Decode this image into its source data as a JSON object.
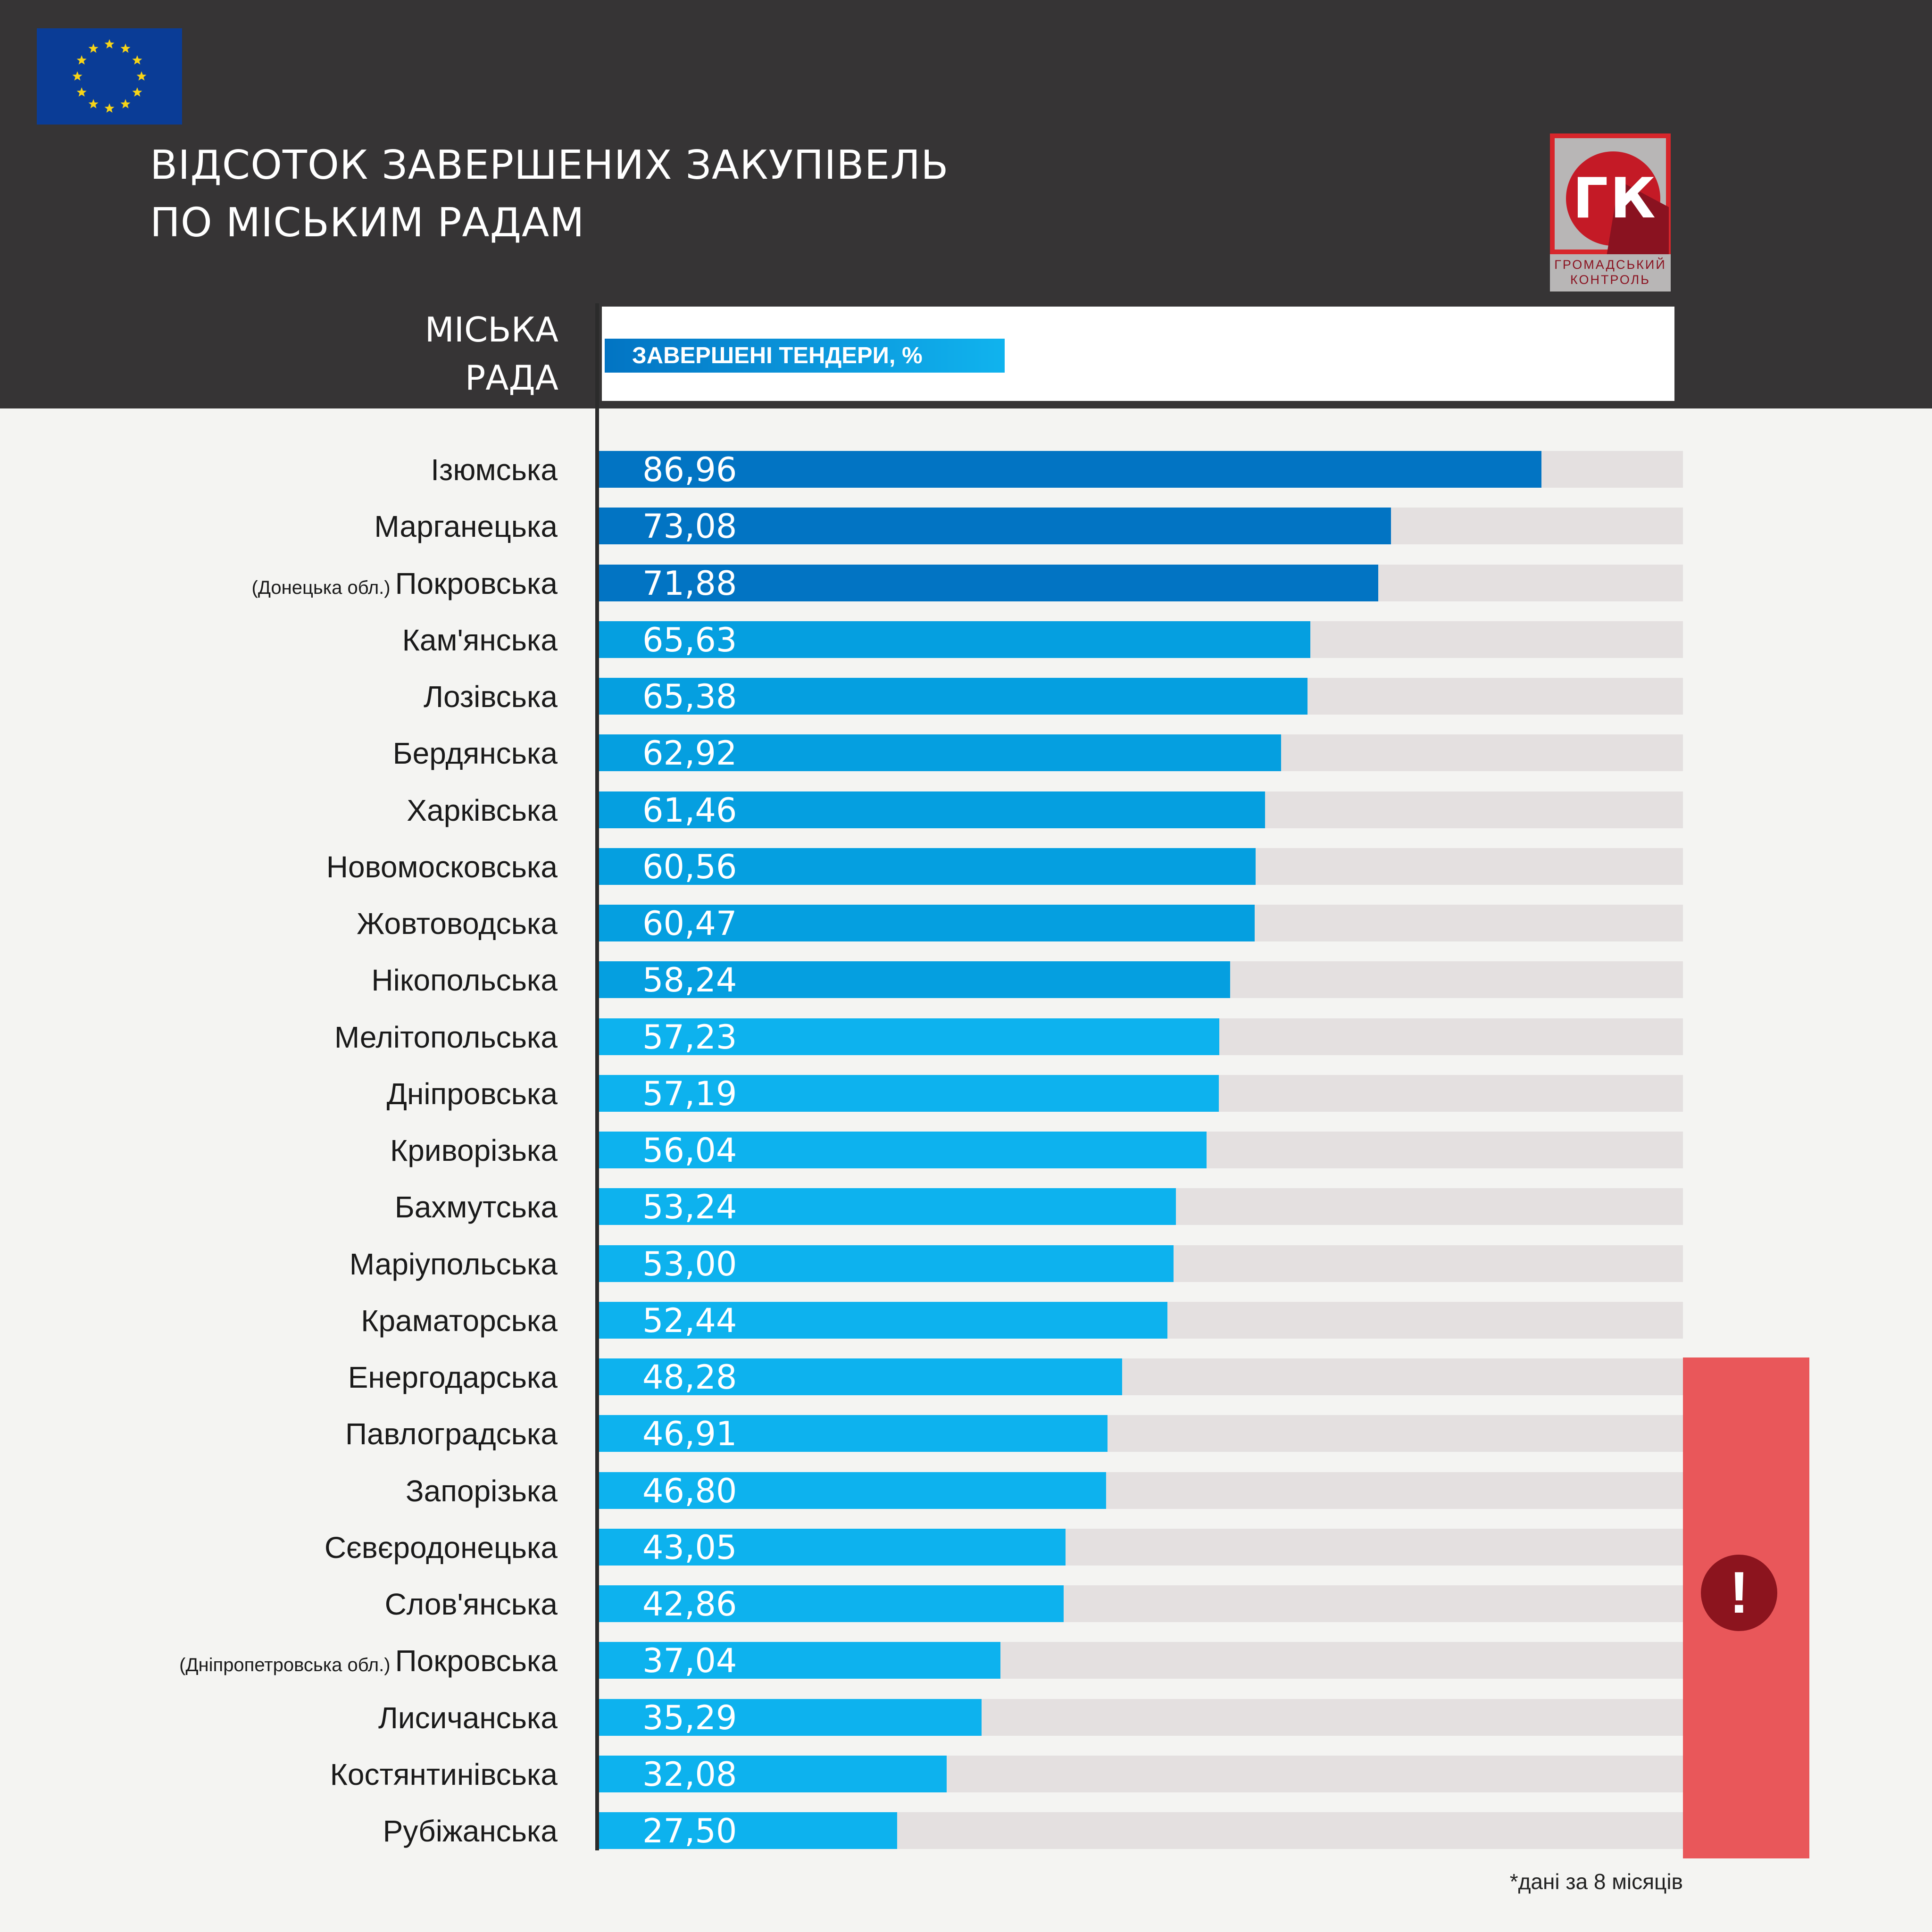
{
  "header": {
    "title_line1": "ВІДСОТОК ЗАВЕРШЕНИХ ЗАКУПІВЕЛЬ",
    "title_line2": "ПО МІСЬКИМ РАДАМ",
    "column_label_line1": "МІСЬКА",
    "column_label_line2": "РАДА",
    "logo_text": "ГК",
    "logo_caption_line1": "ГРОМАДСЬКИЙ",
    "logo_caption_line2": "КОНТРОЛЬ"
  },
  "legend": {
    "label": "ЗАВЕРШЕНІ ТЕНДЕРИ, %"
  },
  "footnote": "*дані за 8 місяців",
  "warning": {
    "symbol": "!"
  },
  "colors": {
    "header_bg": "#363435",
    "bar_dark": "#0274c3",
    "bar_mid": "#059fe0",
    "bar_light": "#0db2ee",
    "track": "#e4e0e0",
    "warning": "#e9575a",
    "eu_blue": "#0a3c96",
    "eu_star": "#f7d417",
    "logo_red": "#d7262b"
  },
  "chart_data": {
    "type": "bar",
    "orientation": "horizontal",
    "xlim": [
      0,
      100
    ],
    "series": [
      {
        "name": "ЗАВЕРШЕНІ ТЕНДЕРИ, %"
      }
    ],
    "rows": [
      {
        "label": "Ізюмська",
        "note": "",
        "value": 86.96,
        "value_text": "86,96",
        "tone": "dark"
      },
      {
        "label": "Марганецька",
        "note": "",
        "value": 73.08,
        "value_text": "73,08",
        "tone": "dark"
      },
      {
        "label": "Покровська",
        "note": "(Донецька обл.)",
        "value": 71.88,
        "value_text": "71,88",
        "tone": "dark"
      },
      {
        "label": "Кам'янська",
        "note": "",
        "value": 65.63,
        "value_text": "65,63",
        "tone": "mid"
      },
      {
        "label": "Лозівська",
        "note": "",
        "value": 65.38,
        "value_text": "65,38",
        "tone": "mid"
      },
      {
        "label": "Бердянська",
        "note": "",
        "value": 62.92,
        "value_text": "62,92",
        "tone": "mid"
      },
      {
        "label": "Харківська",
        "note": "",
        "value": 61.46,
        "value_text": "61,46",
        "tone": "mid"
      },
      {
        "label": "Новомосковська",
        "note": "",
        "value": 60.56,
        "value_text": "60,56",
        "tone": "mid"
      },
      {
        "label": "Жовтоводська",
        "note": "",
        "value": 60.47,
        "value_text": "60,47",
        "tone": "mid"
      },
      {
        "label": "Нікопольська",
        "note": "",
        "value": 58.24,
        "value_text": "58,24",
        "tone": "mid"
      },
      {
        "label": "Мелітопольська",
        "note": "",
        "value": 57.23,
        "value_text": "57,23",
        "tone": "light"
      },
      {
        "label": "Дніпровська",
        "note": "",
        "value": 57.19,
        "value_text": "57,19",
        "tone": "light"
      },
      {
        "label": "Криворізька",
        "note": "",
        "value": 56.04,
        "value_text": "56,04",
        "tone": "light"
      },
      {
        "label": "Бахмутська",
        "note": "",
        "value": 53.24,
        "value_text": "53,24",
        "tone": "light"
      },
      {
        "label": "Маріупольська",
        "note": "",
        "value": 53.0,
        "value_text": "53,00",
        "tone": "light"
      },
      {
        "label": "Краматорська",
        "note": "",
        "value": 52.44,
        "value_text": "52,44",
        "tone": "light"
      },
      {
        "label": "Енергодарська",
        "note": "",
        "value": 48.28,
        "value_text": "48,28",
        "tone": "light"
      },
      {
        "label": "Павлоградська",
        "note": "",
        "value": 46.91,
        "value_text": "46,91",
        "tone": "light"
      },
      {
        "label": "Запорізька",
        "note": "",
        "value": 46.8,
        "value_text": "46,80",
        "tone": "light"
      },
      {
        "label": "Сєвєродонецька",
        "note": "",
        "value": 43.05,
        "value_text": "43,05",
        "tone": "light"
      },
      {
        "label": "Слов'янська",
        "note": "",
        "value": 42.86,
        "value_text": "42,86",
        "tone": "light"
      },
      {
        "label": "Покровська",
        "note": "(Дніпропетровська обл.)",
        "value": 37.04,
        "value_text": "37,04",
        "tone": "light"
      },
      {
        "label": "Лисичанська",
        "note": "",
        "value": 35.29,
        "value_text": "35,29",
        "tone": "light"
      },
      {
        "label": "Костянтинівська",
        "note": "",
        "value": 32.08,
        "value_text": "32,08",
        "tone": "light"
      },
      {
        "label": "Рубіжанська",
        "note": "",
        "value": 27.5,
        "value_text": "27,50",
        "tone": "light"
      }
    ]
  }
}
